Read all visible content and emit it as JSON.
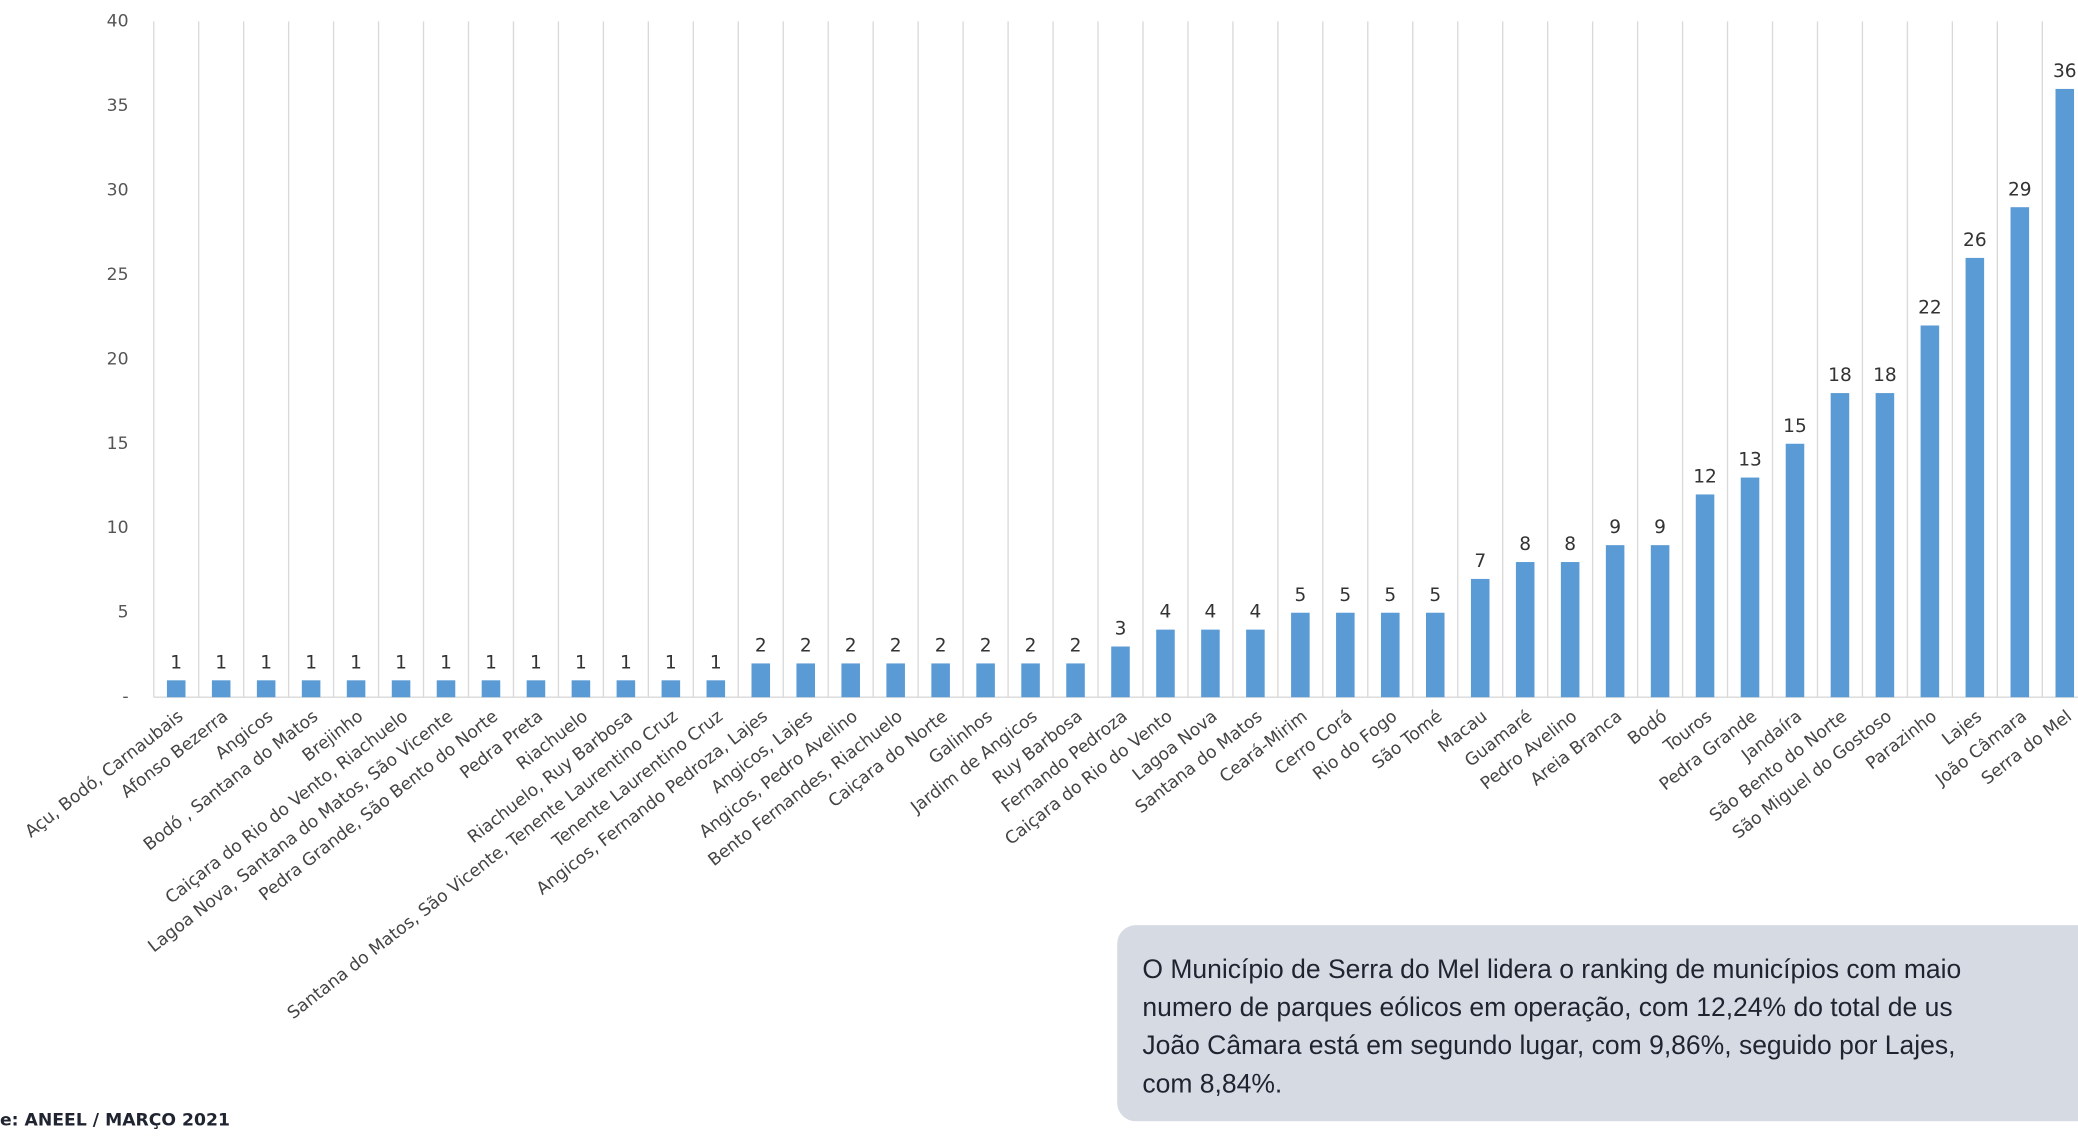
{
  "chart_data": {
    "type": "bar",
    "color": "#5b9bd5",
    "categories": [
      "Açu, Bodó, Carnaubais",
      "Afonso Bezerra",
      "Angicos",
      "Bodó , Santana do Matos",
      "Brejinho",
      "Caiçara do Rio do Vento, Riachuelo",
      "Lagoa Nova, Santana do Matos, São Vicente",
      "Pedra Grande, São Bento do Norte",
      "Pedra Preta",
      "Riachuelo",
      "Riachuelo, Ruy Barbosa",
      "Santana do Matos, São Vicente, Tenente Laurentino Cruz",
      "Tenente Laurentino Cruz",
      "Angicos, Fernando Pedroza, Lajes",
      "Angicos, Lajes",
      "Angicos, Pedro Avelino",
      "Bento Fernandes, Riachuelo",
      "Caiçara do Norte",
      "Galinhos",
      "Jardim de Angicos",
      "Ruy Barbosa",
      "Fernando Pedroza",
      "Caiçara do Rio do Vento",
      "Lagoa Nova",
      "Santana do Matos",
      "Ceará-Mirim",
      "Cerro Corá",
      "Rio do Fogo",
      "São Tomé",
      "Macau",
      "Guamaré",
      "Pedro Avelino",
      "Areia Branca",
      "Bodó",
      "Touros",
      "Pedra Grande",
      "Jandaíra",
      "São Bento do Norte",
      "São Miguel do Gostoso",
      "Parazinho",
      "Lajes",
      "João Câmara",
      "Serra do Mel"
    ],
    "values": [
      1,
      1,
      1,
      1,
      1,
      1,
      1,
      1,
      1,
      1,
      1,
      1,
      1,
      2,
      2,
      2,
      2,
      2,
      2,
      2,
      2,
      3,
      4,
      4,
      4,
      5,
      5,
      5,
      5,
      7,
      8,
      8,
      9,
      9,
      12,
      13,
      15,
      18,
      18,
      22,
      26,
      29,
      36
    ],
    "ylim": [
      0,
      40
    ],
    "yticks": [
      {
        "value": 0,
        "label": "-"
      },
      5,
      10,
      15,
      20,
      25,
      30,
      35,
      40
    ],
    "source": "e: ANEEL / MARÇO 2021",
    "note": [
      "O Município de Serra do Mel lidera o ranking de municípios com maio",
      "numero de parques eólicos em operação, com 12,24% do total de us",
      "João Câmara está em segundo lugar, com 9,86%, seguido por Lajes,",
      "com 8,84%."
    ]
  }
}
